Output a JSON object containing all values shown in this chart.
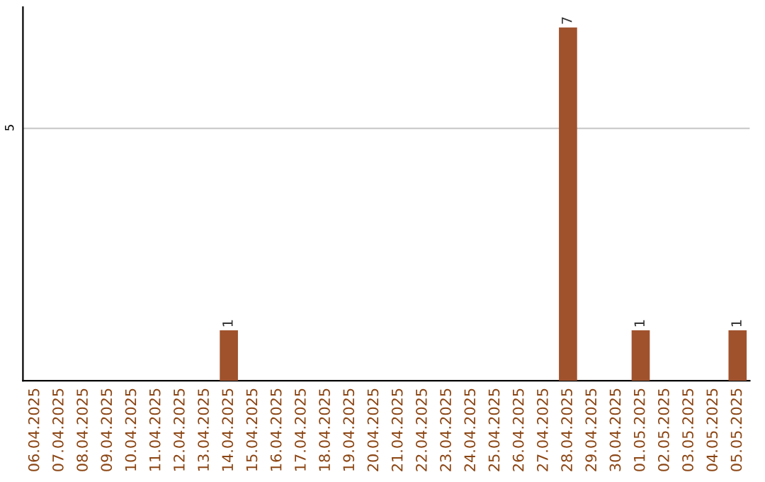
{
  "chart_data": {
    "type": "bar",
    "categories": [
      "06.04.2025",
      "07.04.2025",
      "08.04.2025",
      "09.04.2025",
      "10.04.2025",
      "11.04.2025",
      "12.04.2025",
      "13.04.2025",
      "14.04.2025",
      "15.04.2025",
      "16.04.2025",
      "17.04.2025",
      "18.04.2025",
      "19.04.2025",
      "20.04.2025",
      "21.04.2025",
      "22.04.2025",
      "23.04.2025",
      "24.04.2025",
      "25.04.2025",
      "26.04.2025",
      "27.04.2025",
      "28.04.2025",
      "29.04.2025",
      "30.04.2025",
      "01.05.2025",
      "02.05.2025",
      "03.05.2025",
      "04.05.2025",
      "05.05.2025"
    ],
    "values": [
      0,
      0,
      0,
      0,
      0,
      0,
      0,
      0,
      1,
      0,
      0,
      0,
      0,
      0,
      0,
      0,
      0,
      0,
      0,
      0,
      0,
      0,
      7,
      0,
      0,
      1,
      0,
      0,
      0,
      1
    ],
    "color": "#a0522d",
    "ylim": [
      0,
      7.4
    ],
    "yticks": [
      5
    ],
    "grid": "y",
    "value_labels": [
      null,
      null,
      null,
      null,
      null,
      null,
      null,
      null,
      "1",
      null,
      null,
      null,
      null,
      null,
      null,
      null,
      null,
      null,
      null,
      null,
      null,
      null,
      "7",
      null,
      null,
      "1",
      null,
      null,
      null,
      "1"
    ]
  }
}
